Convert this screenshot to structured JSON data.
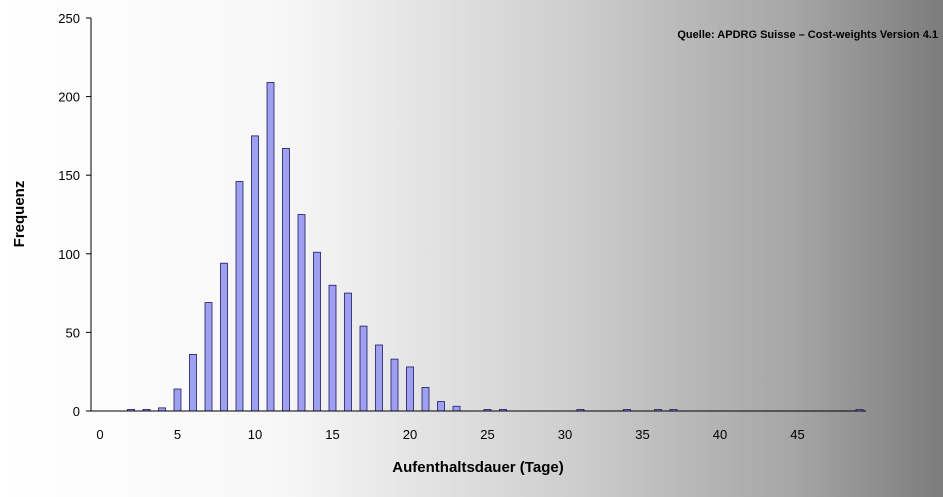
{
  "chart_data": {
    "type": "bar",
    "title": "",
    "annotation": "Quelle: APDRG Suisse – Cost-weights Version 4.1",
    "xlabel": "Aufenthaltsdauer (Tage)",
    "ylabel": "Frequenz",
    "xlim": [
      0,
      50
    ],
    "ylim": [
      0,
      250
    ],
    "xticks": [
      0,
      5,
      10,
      15,
      20,
      25,
      30,
      35,
      40,
      45
    ],
    "yticks": [
      0,
      50,
      100,
      150,
      200,
      250
    ],
    "grid": false,
    "legend": "none",
    "x": [
      2,
      3,
      4,
      5,
      6,
      7,
      8,
      9,
      10,
      11,
      12,
      13,
      14,
      15,
      16,
      17,
      18,
      19,
      20,
      21,
      22,
      23,
      25,
      26,
      31,
      34,
      36,
      37,
      49
    ],
    "values": [
      1,
      1,
      2,
      14,
      36,
      69,
      94,
      146,
      175,
      209,
      167,
      125,
      101,
      80,
      75,
      54,
      42,
      33,
      28,
      15,
      6,
      3,
      1,
      1,
      1,
      1,
      1,
      1,
      1
    ],
    "colors": {
      "bar_fill": "#a0a0f0",
      "bar_stroke": "#1a1a66",
      "axis": "#000000"
    }
  }
}
